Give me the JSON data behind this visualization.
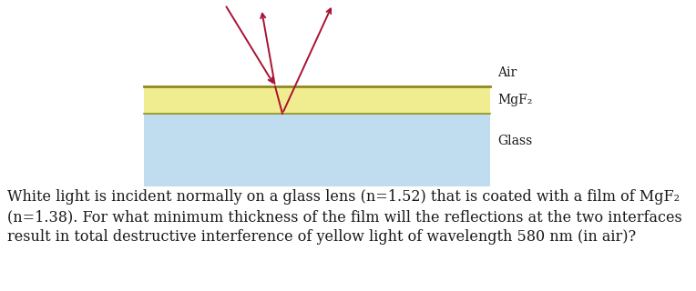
{
  "fig_width": 7.64,
  "fig_height": 3.2,
  "dpi": 100,
  "bg_color": "#ffffff",
  "air_label": "Air",
  "mgf2_label": "MgF₂",
  "glass_label": "Glass",
  "mgf2_color": "#f0ec90",
  "mgf2_border_top_color": "#908820",
  "mgf2_border_bot_color": "#909020",
  "glass_color": "#c0ddf0",
  "arrow_color": "#aa1133",
  "label_color": "#1a1a1a",
  "label_fontsize": 10,
  "paragraph_line1": "White light is incident normally on a glass lens (n=1.52) that is coated with a film of MgF₂",
  "paragraph_line2": "(n=1.38). For what minimum thickness of the film will the reflections at the two interfaces",
  "paragraph_line3": "result in total destructive interference of yellow light of wavelength 580 nm (in air)?",
  "paragraph_fontsize": 11.5,
  "paragraph_color": "#1a1a1a"
}
